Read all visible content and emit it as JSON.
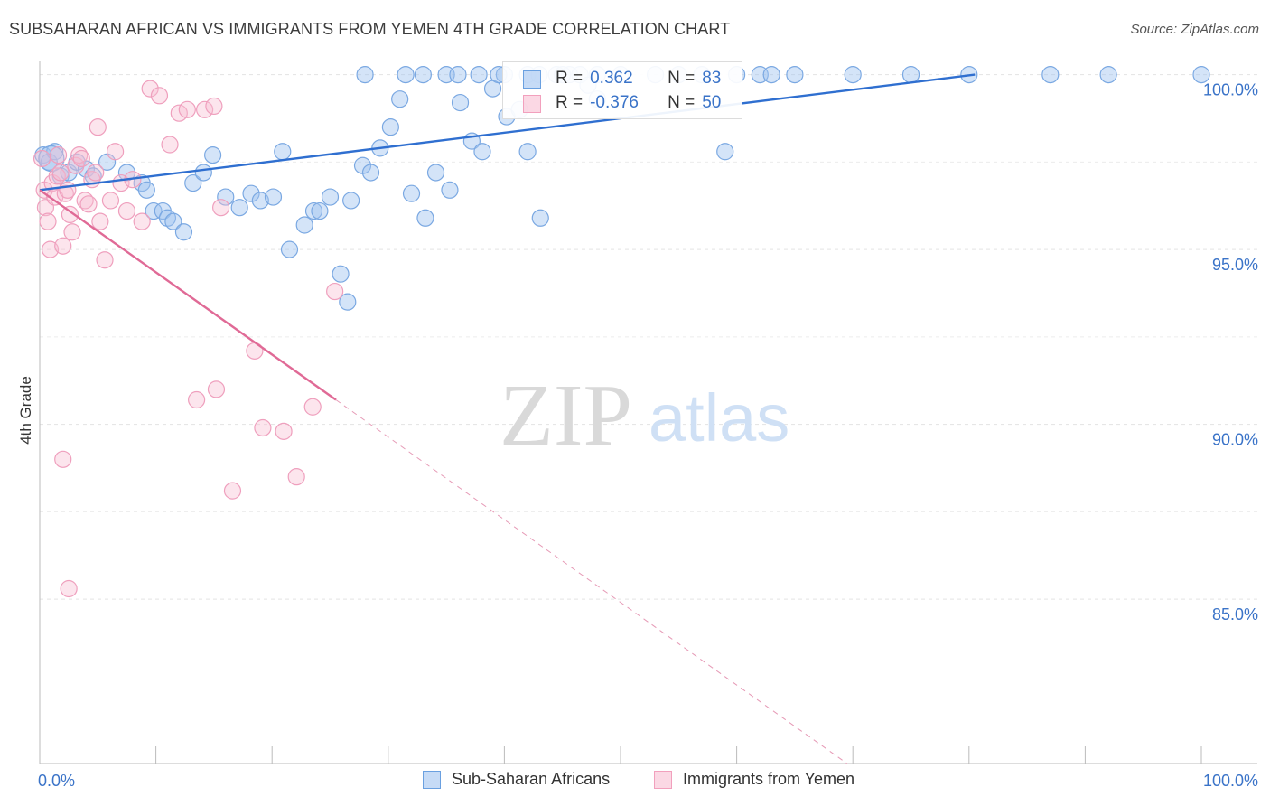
{
  "header": {
    "title": "SUBSAHARAN AFRICAN VS IMMIGRANTS FROM YEMEN 4TH GRADE CORRELATION CHART",
    "source": "Source: ZipAtlas.com"
  },
  "watermark": {
    "zip": "ZIP",
    "atlas": "atlas"
  },
  "stats": [
    {
      "r_label": "R =",
      "r_value": "0.362",
      "n_label": "N =",
      "n_value": "83",
      "color": "#6aa0e0"
    },
    {
      "r_label": "R =",
      "r_value": "-0.376",
      "n_label": "N =",
      "n_value": "50",
      "color": "#f2a0bd"
    }
  ],
  "chart_data": {
    "type": "scatter",
    "title": "SUBSAHARAN AFRICAN VS IMMIGRANTS FROM YEMEN 4TH GRADE CORRELATION CHART",
    "xlabel": "",
    "ylabel": "4th Grade",
    "xlim": [
      0,
      100
    ],
    "ylim": [
      80.3,
      100.3
    ],
    "x_tick_labels": [
      "0.0%",
      "100.0%"
    ],
    "y_ticks": [
      85,
      90,
      95,
      100
    ],
    "y_tick_labels": [
      "85.0%",
      "90.0%",
      "95.0%",
      "100.0%"
    ],
    "grid": true,
    "legend_position": "bottom-center",
    "series": [
      {
        "name": "Sub-Saharan Africans",
        "color": "#6aa0e0",
        "fill": "rgba(160,195,240,0.45)",
        "stroke": "#7aa8e2",
        "trend": {
          "x": [
            0,
            80.5
          ],
          "y": [
            96.7,
            100.0
          ],
          "dashed_to": null
        },
        "points": [
          [
            0.3,
            97.7
          ],
          [
            0.8,
            97.5
          ],
          [
            1.3,
            97.8
          ],
          [
            1.8,
            97.1
          ],
          [
            2.5,
            97.2
          ],
          [
            3.2,
            97.5
          ],
          [
            4.0,
            97.3
          ],
          [
            4.6,
            97.1
          ],
          [
            5.8,
            97.5
          ],
          [
            7.5,
            97.2
          ],
          [
            8.8,
            96.9
          ],
          [
            9.2,
            96.7
          ],
          [
            9.8,
            96.1
          ],
          [
            10.6,
            96.1
          ],
          [
            11.0,
            95.9
          ],
          [
            11.5,
            95.8
          ],
          [
            12.4,
            95.5
          ],
          [
            13.2,
            96.9
          ],
          [
            14.1,
            97.2
          ],
          [
            14.9,
            97.7
          ],
          [
            16.0,
            96.5
          ],
          [
            17.2,
            96.2
          ],
          [
            18.2,
            96.6
          ],
          [
            19.0,
            96.4
          ],
          [
            20.1,
            96.5
          ],
          [
            20.9,
            97.8
          ],
          [
            21.5,
            95.0
          ],
          [
            22.8,
            95.7
          ],
          [
            23.6,
            96.1
          ],
          [
            24.1,
            96.1
          ],
          [
            25.0,
            96.5
          ],
          [
            25.9,
            94.3
          ],
          [
            26.8,
            96.4
          ],
          [
            27.8,
            97.4
          ],
          [
            28.5,
            97.2
          ],
          [
            29.3,
            97.9
          ],
          [
            30.2,
            98.5
          ],
          [
            31.0,
            99.3
          ],
          [
            32.0,
            96.6
          ],
          [
            33.2,
            95.9
          ],
          [
            34.1,
            97.2
          ],
          [
            35.3,
            96.7
          ],
          [
            36.2,
            99.2
          ],
          [
            37.2,
            98.1
          ],
          [
            38.1,
            97.8
          ],
          [
            39.0,
            99.6
          ],
          [
            40.2,
            98.8
          ],
          [
            41.3,
            99.0
          ],
          [
            42.0,
            97.8
          ],
          [
            43.1,
            95.9
          ],
          [
            44.5,
            100.0
          ],
          [
            45.6,
            100.0
          ],
          [
            46.5,
            100.0
          ],
          [
            47.2,
            99.7
          ],
          [
            48.0,
            99.3
          ],
          [
            33.0,
            100.0
          ],
          [
            35.0,
            100.0
          ],
          [
            37.8,
            100.0
          ],
          [
            40.0,
            100.0
          ],
          [
            42.0,
            100.0
          ],
          [
            45.0,
            100.0
          ],
          [
            48.0,
            100.0
          ],
          [
            50.0,
            100.0
          ],
          [
            53.0,
            100.0
          ],
          [
            57.0,
            100.0
          ],
          [
            60.0,
            100.0
          ],
          [
            62.0,
            100.0
          ],
          [
            65.0,
            100.0
          ],
          [
            70.0,
            100.0
          ],
          [
            75.0,
            100.0
          ],
          [
            80.0,
            100.0
          ],
          [
            59.0,
            97.8
          ],
          [
            55.0,
            100.0
          ],
          [
            28.0,
            100.0
          ],
          [
            31.5,
            100.0
          ],
          [
            36.0,
            100.0
          ],
          [
            39.5,
            100.0
          ],
          [
            43.0,
            100.0
          ],
          [
            63.0,
            100.0
          ],
          [
            87.0,
            100.0
          ],
          [
            92.0,
            100.0
          ],
          [
            26.5,
            93.5
          ],
          [
            100.0,
            100.0
          ]
        ],
        "big_points": [
          [
            1.0,
            97.6
          ]
        ]
      },
      {
        "name": "Immigrants from Yemen",
        "color": "#f2a0bd",
        "fill": "rgba(248,190,210,0.40)",
        "stroke": "#ef9fbd",
        "trend": {
          "x": [
            0,
            25.5
          ],
          "y": [
            96.7,
            90.7
          ],
          "dashed_to": {
            "x": 69.5,
            "y": 80.3
          }
        },
        "points": [
          [
            0.2,
            97.6
          ],
          [
            0.4,
            96.7
          ],
          [
            0.5,
            96.2
          ],
          [
            0.7,
            95.8
          ],
          [
            0.9,
            95.0
          ],
          [
            1.1,
            96.9
          ],
          [
            1.3,
            96.5
          ],
          [
            1.5,
            97.1
          ],
          [
            1.6,
            97.7
          ],
          [
            1.8,
            97.2
          ],
          [
            2.0,
            95.1
          ],
          [
            2.2,
            96.6
          ],
          [
            2.4,
            96.7
          ],
          [
            2.6,
            96.0
          ],
          [
            2.8,
            95.5
          ],
          [
            3.1,
            97.4
          ],
          [
            3.4,
            97.7
          ],
          [
            3.6,
            97.6
          ],
          [
            3.9,
            96.4
          ],
          [
            4.2,
            96.3
          ],
          [
            4.5,
            97.0
          ],
          [
            4.8,
            97.2
          ],
          [
            5.2,
            95.8
          ],
          [
            5.6,
            94.7
          ],
          [
            5.0,
            98.5
          ],
          [
            6.1,
            96.4
          ],
          [
            6.5,
            97.8
          ],
          [
            7.0,
            96.9
          ],
          [
            7.5,
            96.1
          ],
          [
            8.0,
            97.0
          ],
          [
            8.8,
            95.8
          ],
          [
            9.5,
            99.6
          ],
          [
            10.3,
            99.4
          ],
          [
            11.2,
            98.0
          ],
          [
            12.0,
            98.9
          ],
          [
            12.7,
            99.0
          ],
          [
            14.2,
            99.0
          ],
          [
            15.0,
            99.1
          ],
          [
            15.6,
            96.2
          ],
          [
            15.2,
            91.0
          ],
          [
            13.5,
            90.7
          ],
          [
            16.6,
            88.1
          ],
          [
            18.5,
            92.1
          ],
          [
            19.2,
            89.9
          ],
          [
            21.0,
            89.8
          ],
          [
            22.1,
            88.5
          ],
          [
            23.5,
            90.5
          ],
          [
            25.4,
            93.8
          ],
          [
            2.0,
            89.0
          ],
          [
            2.5,
            85.3
          ]
        ],
        "big_points": []
      }
    ]
  },
  "legend": [
    {
      "label": "Sub-Saharan Africans",
      "color": "#6aa0e0"
    },
    {
      "label": "Immigrants from Yemen",
      "color": "#f2a0bd"
    }
  ]
}
